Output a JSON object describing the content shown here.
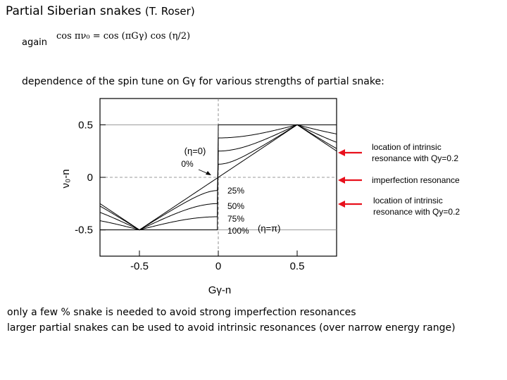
{
  "slide": {
    "title": "Partial Siberian snakes",
    "author": "(T. Roser)",
    "again_label": "again",
    "formula": "cos πν₀ = cos (πGγ) cos (η/2)",
    "subtitle": "dependence of the spin tune on Gγ for various strengths of partial snake:",
    "bottom_line_1": "only a few % snake is needed to avoid strong imperfection resonances",
    "bottom_line_2": "larger partial snakes can be used to avoid intrinsic resonances (over narrow energy range)"
  },
  "figure": {
    "eta0_label": "(η=0)",
    "eta_pi_label": "(η=π)",
    "callouts": [
      {
        "line1": "location of intrinsic",
        "line2": "resonance with Qy=0.2"
      },
      {
        "line1": "imperfection resonance",
        "line2": ""
      },
      {
        "line1": "location of intrinsic",
        "line2": "resonance with Qy=0.2"
      }
    ],
    "arrow_color": "#e8101c"
  },
  "chart_data": {
    "type": "line",
    "xlabel": "Gγ-n",
    "ylabel": "ν₀-n",
    "x_ticks": [
      "-0.5",
      "0",
      "0.5"
    ],
    "y_ticks": [
      "0.5",
      "0",
      "-0.5"
    ],
    "xlim": [
      -0.75,
      0.75
    ],
    "ylim": [
      -0.75,
      0.75
    ],
    "curve_labels": [
      "0%",
      "25%",
      "50%",
      "75%",
      "100%"
    ],
    "series": [
      {
        "name": "0%",
        "snake_strength": 0.0
      },
      {
        "name": "25%",
        "snake_strength": 0.25
      },
      {
        "name": "50%",
        "snake_strength": 0.5
      },
      {
        "name": "75%",
        "snake_strength": 0.75
      },
      {
        "name": "100%",
        "snake_strength": 1.0
      }
    ]
  }
}
